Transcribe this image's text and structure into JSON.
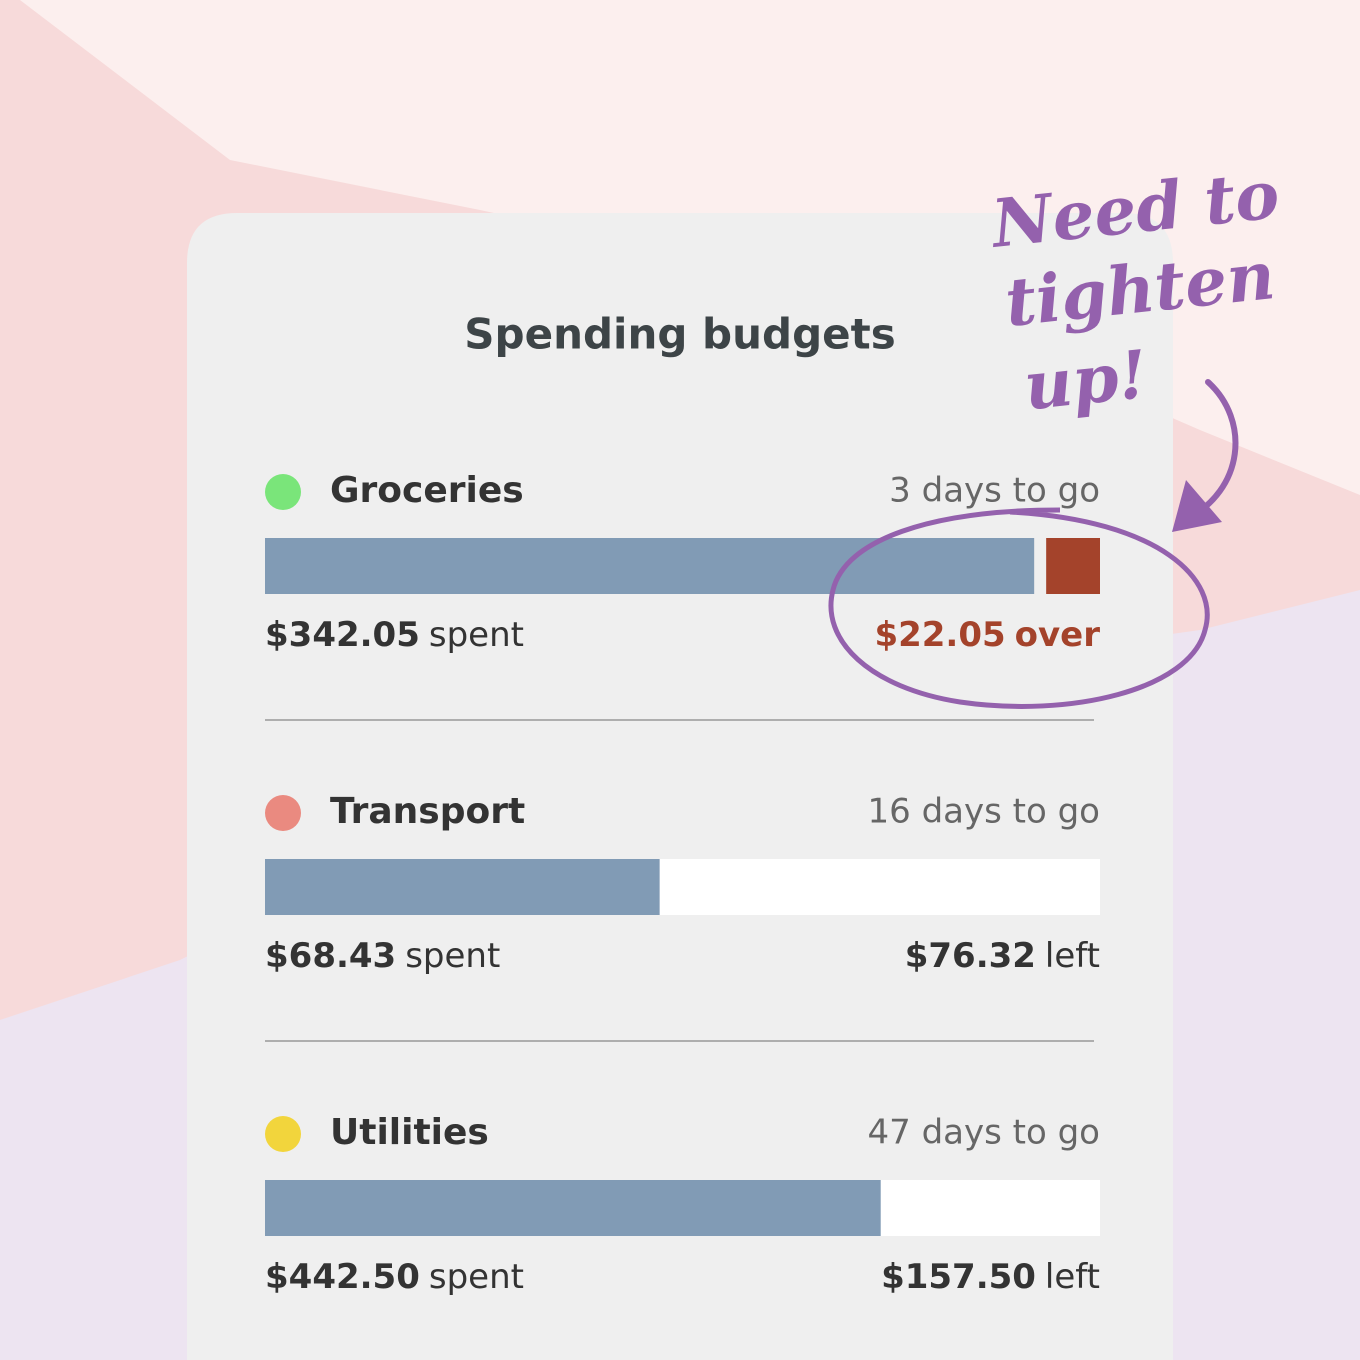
{
  "title": "Spending budgets",
  "annotation": [
    "Need to",
    "tighten",
    "up!"
  ],
  "budgets": [
    {
      "name": "Groceries",
      "dot_color": "#7ae57a",
      "days": "3 days to go",
      "spent": 342.05,
      "spent_label": "$342.05",
      "spent_word": "spent",
      "over": true,
      "amount": 22.05,
      "amount_label": "$22.05",
      "amount_word": "over"
    },
    {
      "name": "Transport",
      "dot_color": "#ea8a80",
      "days": "16 days to go",
      "spent": 68.43,
      "spent_label": "$68.43",
      "spent_word": "spent",
      "over": false,
      "amount": 76.32,
      "amount_label": "$76.32",
      "amount_word": "left"
    },
    {
      "name": "Utilities",
      "dot_color": "#f2d53c",
      "days": "47 days to go",
      "spent": 442.5,
      "spent_label": "$442.50",
      "spent_word": "spent",
      "over": false,
      "amount": 157.5,
      "amount_label": "$157.50",
      "amount_word": "left"
    }
  ]
}
